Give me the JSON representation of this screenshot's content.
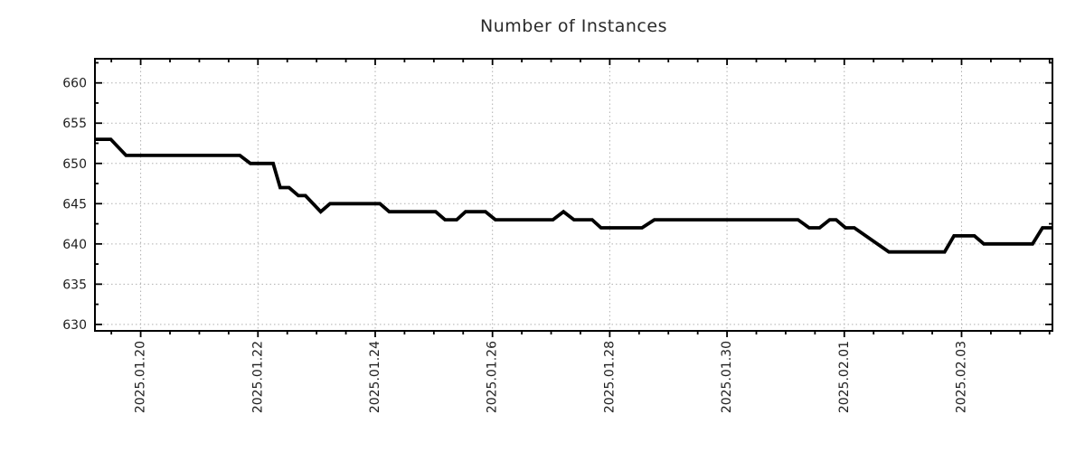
{
  "title": "Number of Instances",
  "colors": {
    "line": "#000000",
    "grid": "#b0b0b0",
    "border": "#000000",
    "tick": "#000000",
    "text": "#202020",
    "background": "#ffffff"
  },
  "chart_data": {
    "type": "line",
    "title": "Number of Instances",
    "xlabel": "",
    "ylabel": "",
    "legend": "none",
    "grid": true,
    "x_unit": "days relative to 2025-01-20",
    "xlim_days": [
      -0.78,
      15.55
    ],
    "ylim": [
      629.2,
      663.0
    ],
    "x_tick_days": [
      0,
      2,
      4,
      6,
      8,
      10,
      12,
      14
    ],
    "x_tick_labels": [
      "2025.01.20",
      "2025.01.22",
      "2025.01.24",
      "2025.01.26",
      "2025.01.28",
      "2025.01.30",
      "2025.02.01",
      "2025.02.03"
    ],
    "x_minor_step_days": 0.5,
    "y_ticks": [
      630,
      635,
      640,
      645,
      650,
      655,
      660
    ],
    "y_minor_step": 2.5,
    "series": [
      {
        "name": "instances",
        "points": [
          [
            -0.78,
            653
          ],
          [
            -0.51,
            653
          ],
          [
            -0.25,
            651
          ],
          [
            1.69,
            651
          ],
          [
            1.87,
            650
          ],
          [
            2.26,
            650
          ],
          [
            2.38,
            647
          ],
          [
            2.53,
            647
          ],
          [
            2.69,
            646
          ],
          [
            2.81,
            646
          ],
          [
            3.07,
            644
          ],
          [
            3.23,
            645
          ],
          [
            4.08,
            645
          ],
          [
            4.24,
            644
          ],
          [
            5.03,
            644
          ],
          [
            5.19,
            643
          ],
          [
            5.39,
            643
          ],
          [
            5.54,
            644
          ],
          [
            5.88,
            644
          ],
          [
            6.05,
            643
          ],
          [
            7.03,
            643
          ],
          [
            7.21,
            644
          ],
          [
            7.39,
            643
          ],
          [
            7.7,
            643
          ],
          [
            7.85,
            642
          ],
          [
            8.55,
            642
          ],
          [
            8.76,
            643
          ],
          [
            11.21,
            643
          ],
          [
            11.4,
            642
          ],
          [
            11.58,
            642
          ],
          [
            11.75,
            643
          ],
          [
            11.86,
            643
          ],
          [
            12.02,
            642
          ],
          [
            12.17,
            642
          ],
          [
            12.76,
            639
          ],
          [
            13.71,
            639
          ],
          [
            13.87,
            641
          ],
          [
            14.22,
            641
          ],
          [
            14.38,
            640
          ],
          [
            15.21,
            640
          ],
          [
            15.38,
            642
          ],
          [
            15.55,
            642
          ]
        ]
      }
    ]
  }
}
